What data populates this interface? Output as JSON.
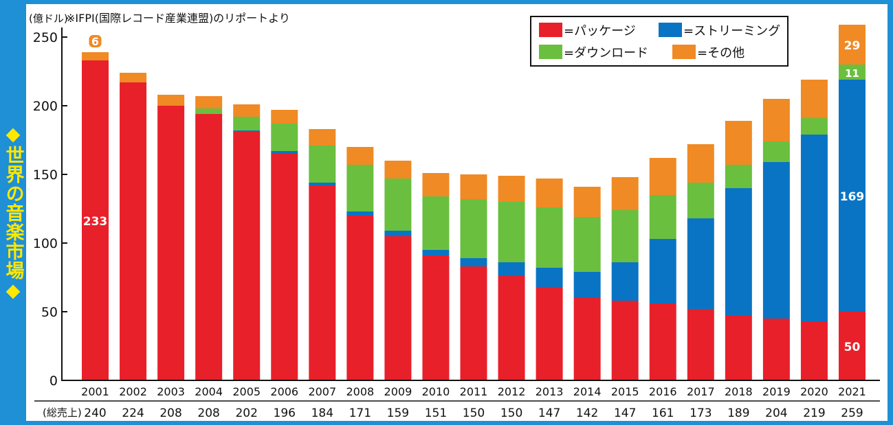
{
  "side_title": "◆世界の音楽市場◆",
  "chart_data": {
    "type": "bar",
    "stacked": true,
    "unit_label": "(億ドル)",
    "source_note": "※IFPI(国際レコード産業連盟)のリポートより",
    "categories": [
      "2001",
      "2002",
      "2003",
      "2004",
      "2005",
      "2006",
      "2007",
      "2008",
      "2009",
      "2010",
      "2011",
      "2012",
      "2013",
      "2014",
      "2015",
      "2016",
      "2017",
      "2018",
      "2019",
      "2020",
      "2021"
    ],
    "totals_label": "(総売上)",
    "totals": [
      "240",
      "224",
      "208",
      "208",
      "202",
      "196",
      "184",
      "171",
      "159",
      "151",
      "150",
      "150",
      "147",
      "142",
      "147",
      "161",
      "173",
      "189",
      "204",
      "219",
      "259"
    ],
    "ylim": [
      0,
      250
    ],
    "yticks": [
      0,
      50,
      100,
      150,
      200,
      250
    ],
    "grid": false,
    "legend_position": "top-right",
    "series": [
      {
        "name": "=パッケージ",
        "color": "#e8202a",
        "values": [
          233,
          217,
          200,
          194,
          181,
          165,
          142,
          120,
          105,
          91,
          83,
          76,
          68,
          60,
          58,
          56,
          52,
          47,
          45,
          43,
          50
        ]
      },
      {
        "name": "=ストリーミング",
        "color": "#0a74c4",
        "values": [
          0,
          0,
          0,
          0,
          1,
          2,
          2,
          3,
          4,
          4,
          6,
          10,
          14,
          19,
          28,
          47,
          66,
          93,
          114,
          136,
          169
        ]
      },
      {
        "name": "=ダウンロード",
        "color": "#6abf3f",
        "values": [
          0,
          0,
          0,
          4,
          10,
          20,
          27,
          34,
          38,
          39,
          43,
          44,
          44,
          40,
          38,
          32,
          26,
          17,
          15,
          12,
          11
        ]
      },
      {
        "name": "=その他",
        "color": "#f08a24",
        "values": [
          6,
          7,
          8,
          9,
          9,
          10,
          12,
          13,
          13,
          17,
          18,
          19,
          21,
          22,
          24,
          27,
          28,
          32,
          31,
          28,
          29
        ]
      }
    ],
    "annotations": [
      {
        "category": "2001",
        "series": 0,
        "text": "233"
      },
      {
        "category": "2001",
        "series": 3,
        "text": "6"
      },
      {
        "category": "2021",
        "series": 0,
        "text": "50"
      },
      {
        "category": "2021",
        "series": 1,
        "text": "169"
      },
      {
        "category": "2021",
        "series": 2,
        "text": "11"
      },
      {
        "category": "2021",
        "series": 3,
        "text": "29"
      }
    ]
  }
}
